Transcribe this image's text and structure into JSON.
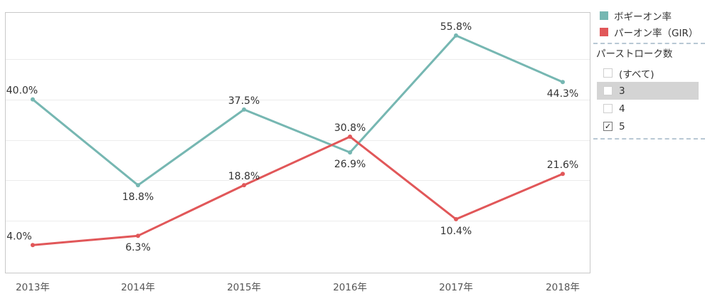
{
  "chart_data": {
    "type": "line",
    "categories": [
      "2013年",
      "2014年",
      "2015年",
      "2016年",
      "2017年",
      "2018年"
    ],
    "series": [
      {
        "name": "ボギーオン率",
        "color": "#76b7b2",
        "values": [
          40.0,
          18.8,
          37.5,
          26.9,
          55.8,
          44.3
        ],
        "labels": [
          "40.0%",
          "18.8%",
          "37.5%",
          "26.9%",
          "55.8%",
          "44.3%"
        ]
      },
      {
        "name": "パーオン率（GIR）",
        "color": "#e15759",
        "values": [
          4.0,
          6.3,
          18.8,
          30.8,
          10.4,
          21.6
        ],
        "labels": [
          "4.0%",
          "6.3%",
          "18.8%",
          "30.8%",
          "10.4%",
          "21.6%"
        ]
      }
    ],
    "ylim": [
      0,
      60
    ],
    "grid": true,
    "legend": "right"
  },
  "legend": {
    "items": [
      {
        "label": "ボギーオン率",
        "color": "#76b7b2"
      },
      {
        "label": "パーオン率（GIR）",
        "color": "#e15759"
      }
    ]
  },
  "filter": {
    "title": "パーストローク数",
    "options": [
      {
        "label": "(すべて)",
        "checked": false,
        "hovered": false
      },
      {
        "label": "3",
        "checked": false,
        "hovered": true
      },
      {
        "label": "4",
        "checked": false,
        "hovered": false
      },
      {
        "label": "5",
        "checked": true,
        "hovered": false
      }
    ],
    "check_mark": "✓"
  }
}
